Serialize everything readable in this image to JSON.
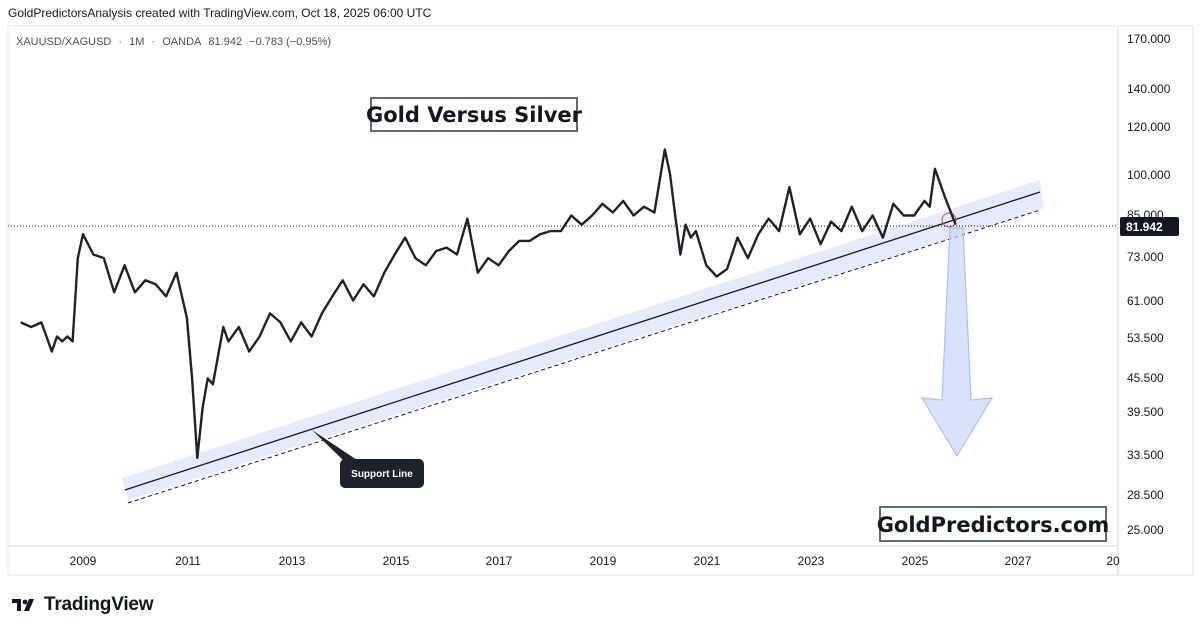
{
  "header": {
    "attribution": "GoldPredictorsAnalysis created with TradingView.com, Oct 18, 2025 06:00 UTC"
  },
  "symbol_line": {
    "pair": "XAUUSD/XAGUSD",
    "interval": "1M",
    "source": "OANDA",
    "last": "81.942",
    "change": "−0.783 (−0.95%)"
  },
  "footer": {
    "brand": "TradingView"
  },
  "chart_data": {
    "type": "line",
    "title": "Gold Versus Silver",
    "watermark": "GoldPredictors.com",
    "scale": "log",
    "x_ticks": [
      "2009",
      "2011",
      "2013",
      "2015",
      "2017",
      "2019",
      "2021",
      "2023",
      "2025",
      "2027",
      "20"
    ],
    "y_ticks": [
      "170.000",
      "140.000",
      "120.000",
      "100.000",
      "85.000",
      "73.000",
      "61.000",
      "53.500",
      "45.500",
      "39.500",
      "33.500",
      "28.500",
      "25.000"
    ],
    "last_price_label": "81.942",
    "series": [
      {
        "name": "XAUUSD/XAGUSD",
        "x": [
          2007.8,
          2008.0,
          2008.2,
          2008.4,
          2008.5,
          2008.6,
          2008.7,
          2008.8,
          2008.9,
          2009.0,
          2009.2,
          2009.4,
          2009.6,
          2009.8,
          2010.0,
          2010.2,
          2010.4,
          2010.6,
          2010.8,
          2011.0,
          2011.1,
          2011.2,
          2011.3,
          2011.4,
          2011.5,
          2011.7,
          2011.8,
          2012.0,
          2012.2,
          2012.4,
          2012.6,
          2012.8,
          2013.0,
          2013.2,
          2013.4,
          2013.6,
          2013.8,
          2014.0,
          2014.2,
          2014.4,
          2014.6,
          2014.8,
          2015.0,
          2015.2,
          2015.4,
          2015.6,
          2015.8,
          2016.0,
          2016.2,
          2016.4,
          2016.6,
          2016.8,
          2017.0,
          2017.2,
          2017.4,
          2017.6,
          2017.8,
          2018.0,
          2018.2,
          2018.4,
          2018.6,
          2018.8,
          2019.0,
          2019.2,
          2019.4,
          2019.6,
          2019.8,
          2020.0,
          2020.2,
          2020.3,
          2020.4,
          2020.5,
          2020.6,
          2020.7,
          2020.8,
          2021.0,
          2021.2,
          2021.4,
          2021.6,
          2021.8,
          2022.0,
          2022.2,
          2022.4,
          2022.6,
          2022.8,
          2023.0,
          2023.2,
          2023.4,
          2023.6,
          2023.8,
          2024.0,
          2024.2,
          2024.4,
          2024.6,
          2024.8,
          2025.0,
          2025.2,
          2025.3,
          2025.4,
          2025.6,
          2025.8
        ],
        "values": [
          56,
          55,
          56,
          50,
          53,
          52,
          53,
          52,
          72,
          79,
          73,
          72,
          63,
          70,
          63,
          66,
          65,
          62,
          68,
          57,
          45,
          33,
          40,
          45,
          44,
          55,
          52,
          55,
          50,
          53,
          58,
          56,
          52,
          56,
          53,
          58,
          62,
          66,
          61,
          65,
          62,
          68,
          73,
          78,
          72,
          70,
          74,
          75,
          73,
          84,
          68,
          72,
          70,
          74,
          77,
          77,
          79,
          80,
          80,
          85,
          82,
          85,
          89,
          86,
          90,
          85,
          88,
          86,
          110,
          100,
          85,
          73,
          82,
          78,
          80,
          70,
          67,
          69,
          78,
          72,
          79,
          84,
          80,
          95,
          79,
          84,
          76,
          83,
          80,
          88,
          80,
          85,
          78,
          89,
          85,
          85,
          90,
          88,
          102,
          91,
          82
        ]
      }
    ],
    "trendlines": [
      {
        "name": "Support Line",
        "style": "solid"
      },
      {
        "name": "lower channel",
        "style": "dashed"
      }
    ],
    "annotations": [
      {
        "text": "Support Line"
      }
    ]
  }
}
